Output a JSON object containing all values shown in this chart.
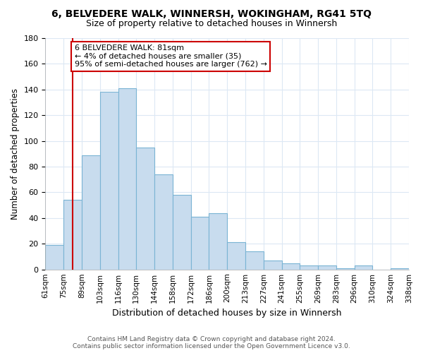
{
  "title_line1": "6, BELVEDERE WALK, WINNERSH, WOKINGHAM, RG41 5TQ",
  "title_line2": "Size of property relative to detached houses in Winnersh",
  "xlabel": "Distribution of detached houses by size in Winnersh",
  "ylabel": "Number of detached properties",
  "bar_labels": [
    "61sqm",
    "75sqm",
    "89sqm",
    "103sqm",
    "116sqm",
    "130sqm",
    "144sqm",
    "158sqm",
    "172sqm",
    "186sqm",
    "200sqm",
    "213sqm",
    "227sqm",
    "241sqm",
    "255sqm",
    "269sqm",
    "283sqm",
    "296sqm",
    "310sqm",
    "324sqm",
    "338sqm"
  ],
  "bar_values": [
    19,
    54,
    89,
    138,
    141,
    95,
    74,
    58,
    41,
    44,
    21,
    14,
    7,
    5,
    3,
    3,
    1,
    3,
    0,
    1
  ],
  "bar_color": "#c8dcee",
  "bar_edge_color": "#7ab4d4",
  "vline_x": 1.5,
  "vline_color": "#cc0000",
  "annotation_text": "6 BELVEDERE WALK: 81sqm\n← 4% of detached houses are smaller (35)\n95% of semi-detached houses are larger (762) →",
  "annotation_box_color": "#ffffff",
  "annotation_box_edge": "#cc0000",
  "ylim": [
    0,
    180
  ],
  "yticks": [
    0,
    20,
    40,
    60,
    80,
    100,
    120,
    140,
    160,
    180
  ],
  "footer_line1": "Contains HM Land Registry data © Crown copyright and database right 2024.",
  "footer_line2": "Contains public sector information licensed under the Open Government Licence v3.0.",
  "bg_color": "#ffffff",
  "grid_color": "#dce8f4"
}
